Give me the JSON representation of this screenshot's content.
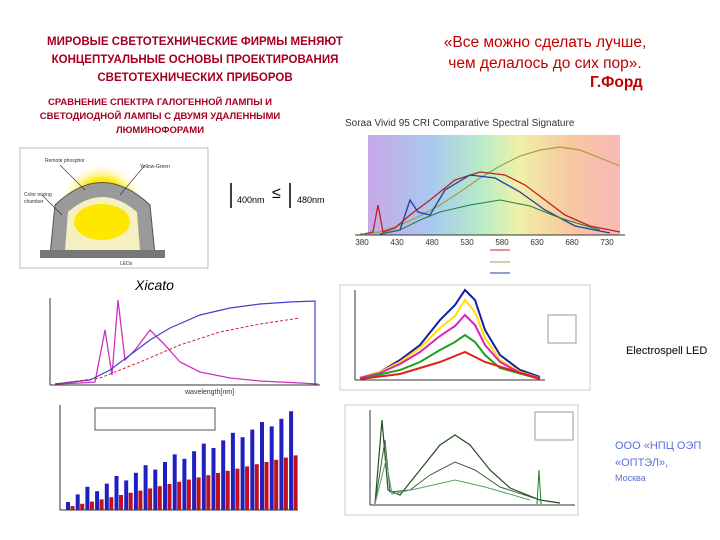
{
  "header": {
    "title": [
      "МИРОВЫЕ СВЕТОТЕХНИЧЕСКИЕ ФИРМЫ МЕНЯЮТ",
      "КОНЦЕПТУАЛЬНЫЕ ОСНОВЫ ПРОЕКТИРОВАНИЯ",
      "СВЕТОТЕХНИЧЕСКИХ ПРИБОРОВ"
    ],
    "quote": [
      "«Все можно сделать лучше,",
      "чем делалось до сих пор»."
    ],
    "quote_author": "Г.Форд"
  },
  "subtitle": [
    "СРАВНЕНИЕ СПЕКТРА ГАЛОГЕННОЙ ЛАМПЫ И",
    "СВЕТОДИОДНОЙ ЛАМПЫ С ДВУМЯ УДАЛЕННЫМИ",
    "ЛЮМИНОФОРАМИ"
  ],
  "formula": {
    "left": "400nm",
    "sign": "≤",
    "right": "480nm"
  },
  "spectral_chart": {
    "title": "Soraa Vivid 95 CRI Comparative Spectral Signature",
    "x_ticks": [
      "380",
      "430",
      "480",
      "530",
      "580",
      "630",
      "680",
      "730"
    ]
  },
  "captions": {
    "xicato": "Xicato",
    "electrospell": "Electrospell  LED",
    "company": [
      "ООО «НПЦ ОЭП",
      "«ОПТЭЛ»,",
      "Москва"
    ]
  }
}
